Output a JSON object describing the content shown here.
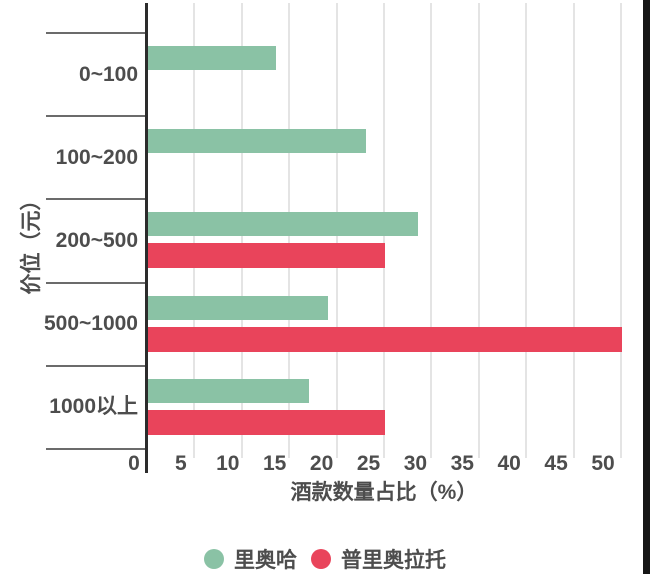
{
  "chart_data": {
    "type": "bar",
    "orientation": "horizontal",
    "title": "",
    "categories": [
      "0~100",
      "100~200",
      "200~500",
      "500~1000",
      "1000以上"
    ],
    "series": [
      {
        "name": "里奥哈",
        "color": "#8AC2A5",
        "values": [
          13.5,
          23,
          28.5,
          19,
          17
        ]
      },
      {
        "name": "普里奥拉托",
        "color": "#E9445B",
        "values": [
          0,
          0,
          25,
          50,
          25
        ]
      }
    ],
    "xlabel": "酒款数量占比（%）",
    "ylabel": "价位（元）",
    "xlim": [
      0,
      52.3
    ],
    "xticks": [
      0,
      5,
      10,
      15,
      20,
      25,
      30,
      35,
      40,
      45,
      50
    ],
    "grid": true,
    "legend_position": "bottom"
  },
  "colors": {
    "axis_line": "#2c2c2c",
    "gridline": "#e4e4e4",
    "category_tick": "#6b6b6b",
    "text": "#4d4d4d",
    "background": "#ffffff"
  }
}
